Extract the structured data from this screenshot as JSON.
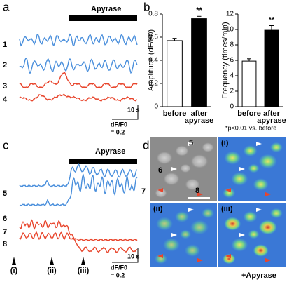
{
  "panels": {
    "a": {
      "label": "a",
      "bar_label": "Apyrase",
      "traces": [
        "1",
        "2",
        "3",
        "4"
      ],
      "scale": {
        "time": "10 s",
        "unit": "dF/F0",
        "amount": "= 0.2"
      }
    },
    "b": {
      "label": "b",
      "note": "*p<0.01 vs. before"
    },
    "c": {
      "label": "c",
      "bar_label": "Apyrase",
      "traces": [
        "5",
        "6",
        "7",
        "8"
      ],
      "timepoints": [
        "(i)",
        "(ii)",
        "(iii)"
      ],
      "scale": {
        "time": "10 s",
        "unit": "dF/F0",
        "amount": "= 0.2"
      }
    },
    "d": {
      "label": "d",
      "cells": [
        "5",
        "6",
        "7",
        "8"
      ],
      "images": [
        "(i)",
        "(ii)",
        "(iii)"
      ],
      "condition": "+Apyrase"
    }
  },
  "chart_data": [
    {
      "type": "bar",
      "ylabel": "Amplitude (dF/F0)",
      "categories": [
        "before",
        "after apyrase"
      ],
      "values": [
        0.57,
        0.76
      ],
      "errors": [
        0.02,
        0.02
      ],
      "colors": [
        "#ffffff",
        "#000000"
      ],
      "annotation": "**",
      "ylim": [
        0,
        0.8
      ],
      "yticks": [
        0,
        0.2,
        0.4,
        0.6,
        0.8
      ]
    },
    {
      "type": "bar",
      "ylabel": "Frequency (times/min)",
      "categories": [
        "before",
        "after apyrase"
      ],
      "values": [
        5.9,
        9.9
      ],
      "errors": [
        0.3,
        0.6
      ],
      "colors": [
        "#ffffff",
        "#000000"
      ],
      "annotation": "**",
      "ylim": [
        0,
        12
      ],
      "yticks": [
        0,
        2,
        4,
        6,
        8,
        10,
        12
      ]
    }
  ]
}
